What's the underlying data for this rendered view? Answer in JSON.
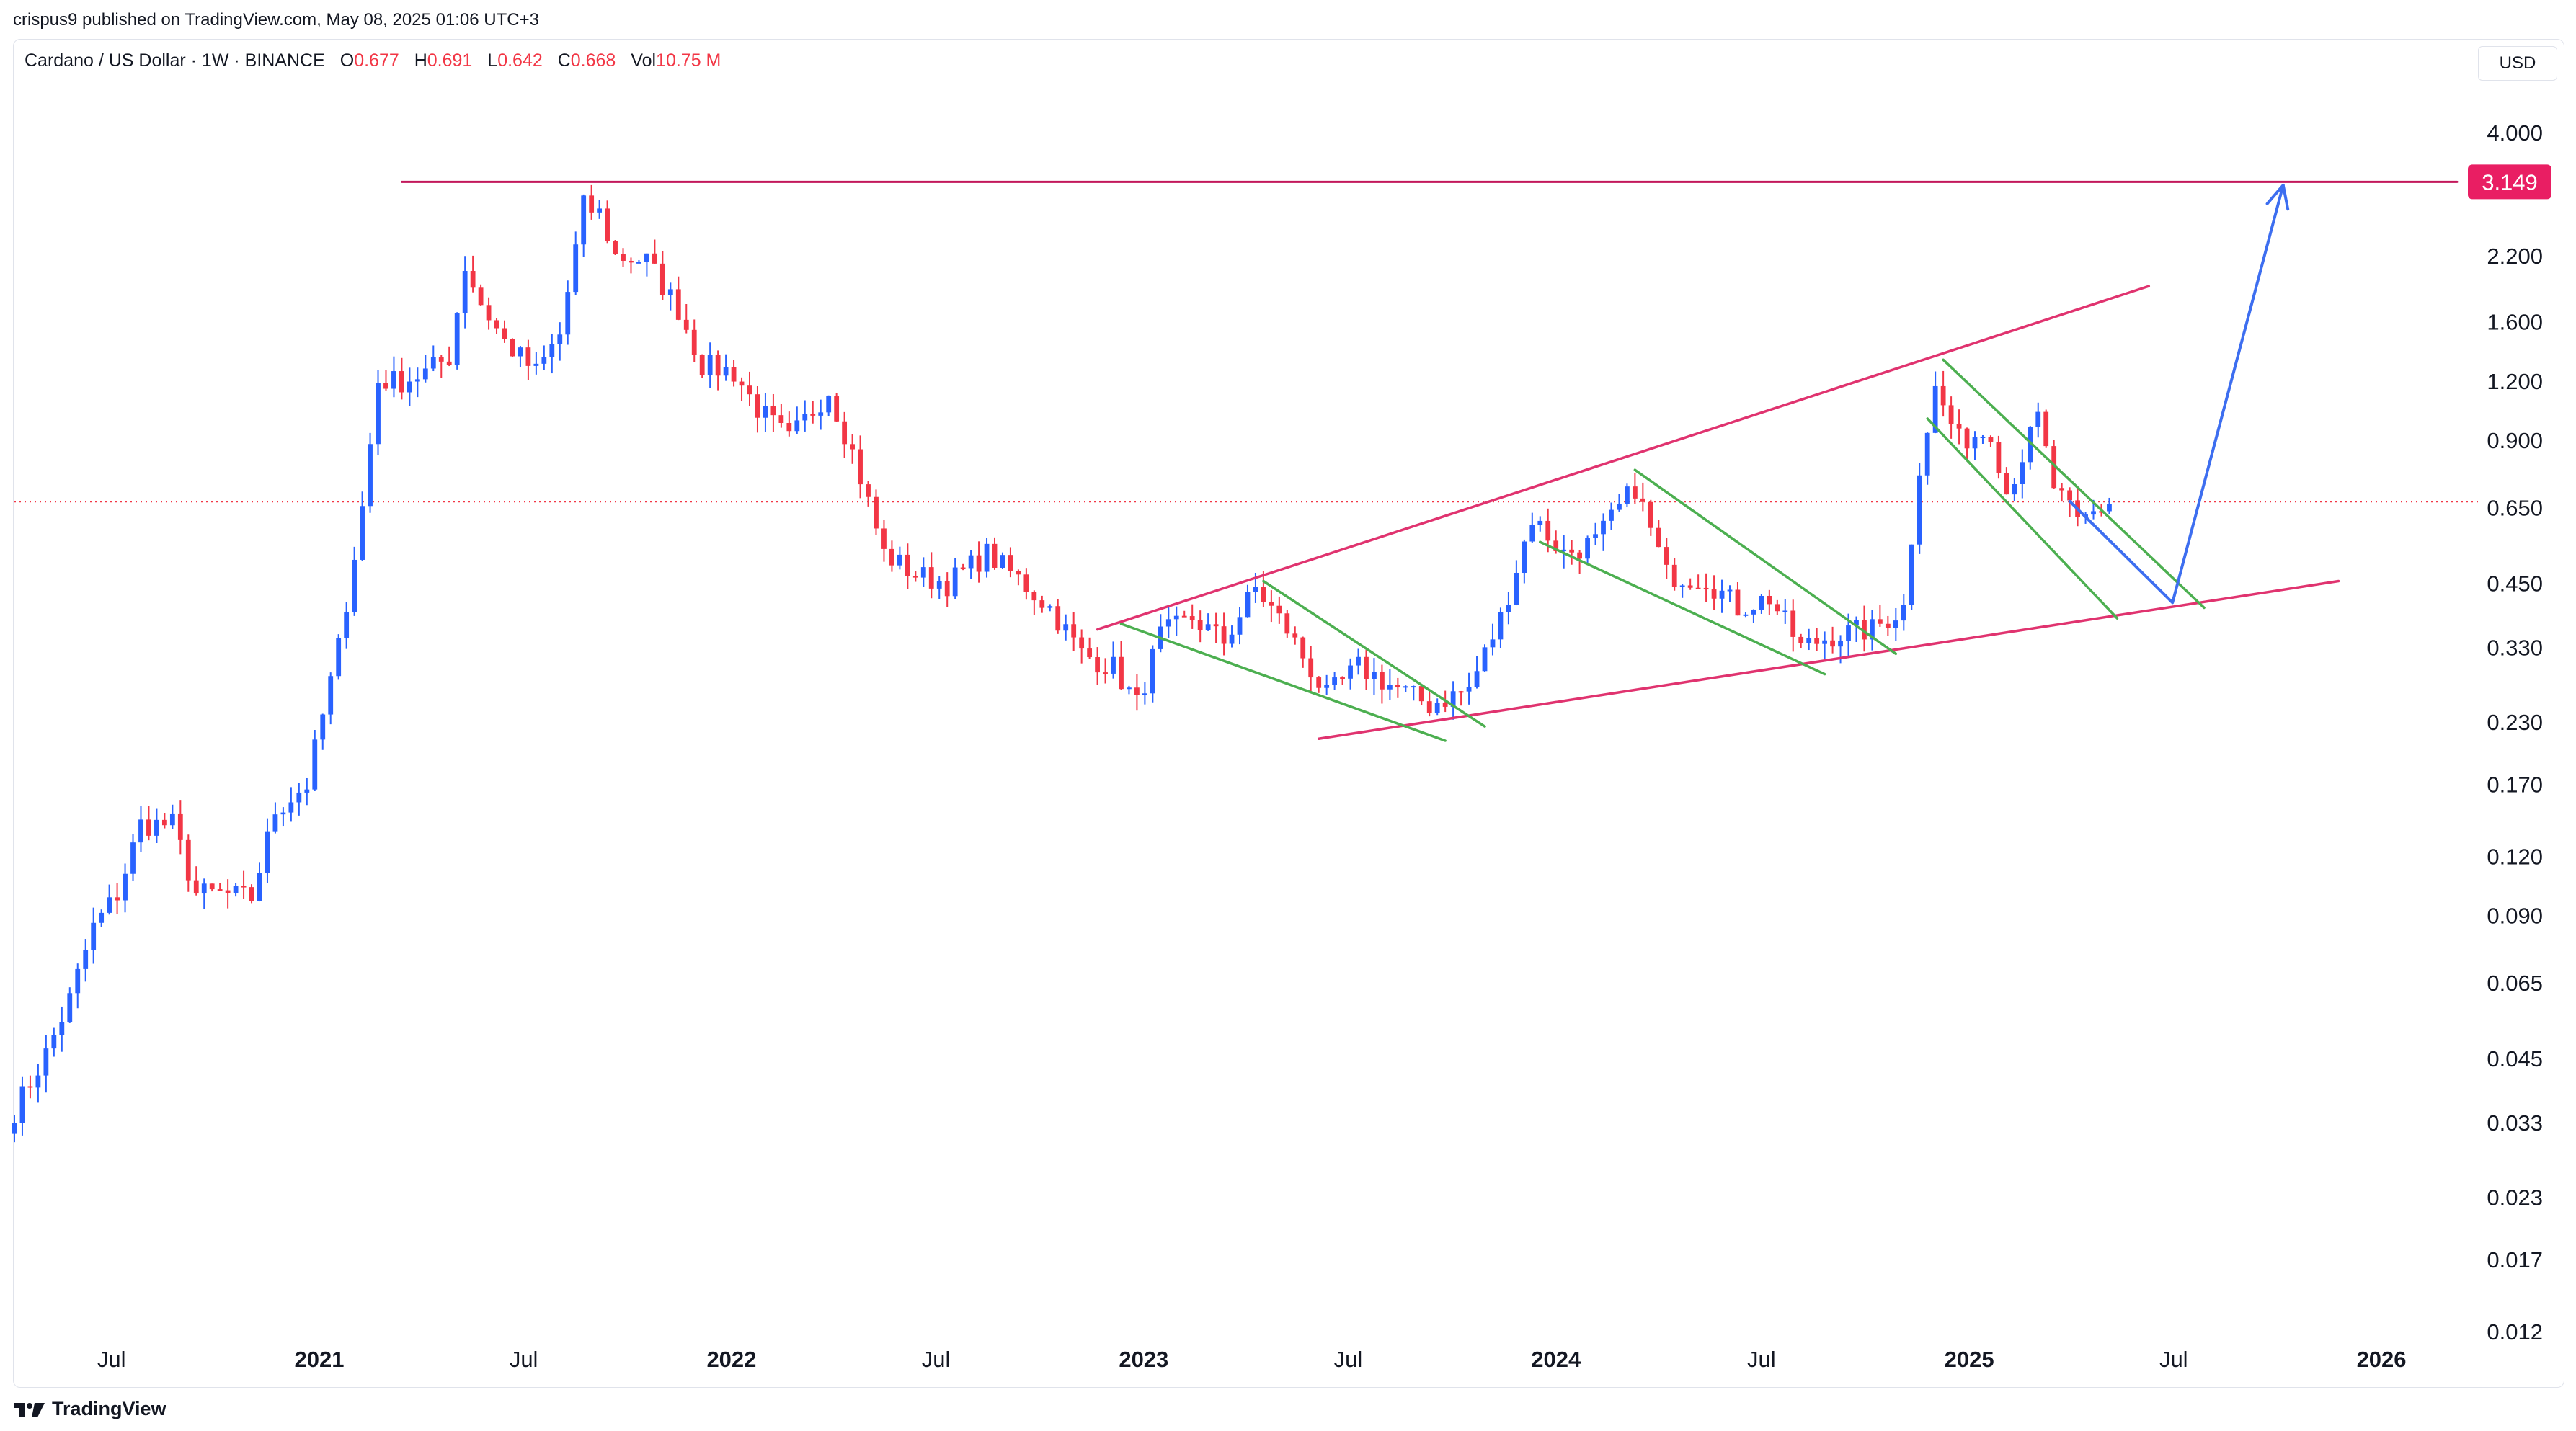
{
  "publisher_line": "crispus9 published on TradingView.com, May 08, 2025 01:06 UTC+3",
  "legend": {
    "symbol": "Cardano / US Dollar · 1W · BINANCE",
    "open_label": "O",
    "open": "0.677",
    "high_label": "H",
    "high": "0.691",
    "low_label": "L",
    "low": "0.642",
    "close_label": "C",
    "close": "0.668",
    "vol_label": "Vol",
    "vol": "10.75 M"
  },
  "currency_button": "USD",
  "brand_text": "TradingView",
  "colors": {
    "up": "#2962ff",
    "down": "#f23645",
    "wedge": "#e0336f",
    "flag": "#4caf50",
    "projection": "#3d6ef0",
    "price_label_bg": "#e91e63",
    "resistance": "#c2185b"
  },
  "chart_data": {
    "type": "candlestick",
    "scale": "log",
    "ylim": [
      0.01,
      5.0
    ],
    "xlim": [
      "2020-04-06",
      "2026-03-16"
    ],
    "y_ticks": [
      "4.000",
      "3.149",
      "2.200",
      "1.600",
      "1.200",
      "0.900",
      "0.650",
      "0.450",
      "0.330",
      "0.230",
      "0.170",
      "0.120",
      "0.090",
      "0.065",
      "0.045",
      "0.033",
      "0.023",
      "0.017",
      "0.012"
    ],
    "y_tick_values": [
      4.0,
      3.149,
      2.2,
      1.6,
      1.2,
      0.9,
      0.65,
      0.45,
      0.33,
      0.23,
      0.17,
      0.12,
      0.09,
      0.065,
      0.045,
      0.033,
      0.023,
      0.017,
      0.012
    ],
    "x_ticks": [
      {
        "label": "Jul",
        "date": "2020-07-01",
        "year": false
      },
      {
        "label": "2021",
        "date": "2021-01-01",
        "year": true
      },
      {
        "label": "Jul",
        "date": "2021-07-01",
        "year": false
      },
      {
        "label": "2022",
        "date": "2022-01-01",
        "year": true
      },
      {
        "label": "Jul",
        "date": "2022-07-01",
        "year": false
      },
      {
        "label": "2023",
        "date": "2023-01-01",
        "year": true
      },
      {
        "label": "Jul",
        "date": "2023-07-01",
        "year": false
      },
      {
        "label": "2024",
        "date": "2024-01-01",
        "year": true
      },
      {
        "label": "Jul",
        "date": "2024-07-01",
        "year": false
      },
      {
        "label": "2025",
        "date": "2025-01-01",
        "year": true
      },
      {
        "label": "Jul",
        "date": "2025-07-01",
        "year": false
      },
      {
        "label": "2026",
        "date": "2026-01-01",
        "year": true
      }
    ],
    "price_label": "3.149",
    "current_price": 0.668,
    "close_anchors": [
      [
        "2020-04-06",
        0.035
      ],
      [
        "2020-05-04",
        0.046
      ],
      [
        "2020-05-25",
        0.06
      ],
      [
        "2020-06-15",
        0.085
      ],
      [
        "2020-07-06",
        0.1
      ],
      [
        "2020-07-27",
        0.14
      ],
      [
        "2020-08-24",
        0.14
      ],
      [
        "2020-09-14",
        0.1
      ],
      [
        "2020-10-05",
        0.1
      ],
      [
        "2020-11-02",
        0.098
      ],
      [
        "2020-11-23",
        0.15
      ],
      [
        "2020-12-21",
        0.17
      ],
      [
        "2021-01-18",
        0.33
      ],
      [
        "2021-02-08",
        0.65
      ],
      [
        "2021-02-22",
        1.2
      ],
      [
        "2021-03-15",
        1.2
      ],
      [
        "2021-04-05",
        1.25
      ],
      [
        "2021-04-26",
        1.35
      ],
      [
        "2021-05-10",
        2.1
      ],
      [
        "2021-05-24",
        1.75
      ],
      [
        "2021-06-14",
        1.45
      ],
      [
        "2021-07-12",
        1.25
      ],
      [
        "2021-08-02",
        1.5
      ],
      [
        "2021-08-23",
        2.8
      ],
      [
        "2021-09-06",
        2.7
      ],
      [
        "2021-09-20",
        2.2
      ],
      [
        "2021-10-18",
        2.15
      ],
      [
        "2021-11-15",
        1.7
      ],
      [
        "2021-12-06",
        1.3
      ],
      [
        "2022-01-03",
        1.25
      ],
      [
        "2022-01-24",
        1.05
      ],
      [
        "2022-02-21",
        0.9
      ],
      [
        "2022-03-28",
        1.15
      ],
      [
        "2022-04-18",
        0.85
      ],
      [
        "2022-05-16",
        0.52
      ],
      [
        "2022-06-13",
        0.47
      ],
      [
        "2022-07-11",
        0.45
      ],
      [
        "2022-08-15",
        0.52
      ],
      [
        "2022-09-12",
        0.46
      ],
      [
        "2022-10-10",
        0.4
      ],
      [
        "2022-11-07",
        0.32
      ],
      [
        "2022-12-05",
        0.3
      ],
      [
        "2022-12-26",
        0.25
      ],
      [
        "2023-01-16",
        0.35
      ],
      [
        "2023-02-13",
        0.38
      ],
      [
        "2023-03-13",
        0.34
      ],
      [
        "2023-04-10",
        0.44
      ],
      [
        "2023-05-08",
        0.36
      ],
      [
        "2023-06-12",
        0.26
      ],
      [
        "2023-07-10",
        0.3
      ],
      [
        "2023-08-14",
        0.27
      ],
      [
        "2023-09-11",
        0.25
      ],
      [
        "2023-10-16",
        0.27
      ],
      [
        "2023-11-13",
        0.38
      ],
      [
        "2023-12-11",
        0.62
      ],
      [
        "2024-01-08",
        0.52
      ],
      [
        "2024-02-05",
        0.55
      ],
      [
        "2024-03-11",
        0.72
      ],
      [
        "2024-04-08",
        0.47
      ],
      [
        "2024-05-13",
        0.46
      ],
      [
        "2024-06-10",
        0.4
      ],
      [
        "2024-07-08",
        0.42
      ],
      [
        "2024-08-05",
        0.33
      ],
      [
        "2024-09-02",
        0.35
      ],
      [
        "2024-10-07",
        0.36
      ],
      [
        "2024-11-04",
        0.4
      ],
      [
        "2024-11-18",
        0.8
      ],
      [
        "2024-12-02",
        1.15
      ],
      [
        "2024-12-23",
        0.9
      ],
      [
        "2025-01-20",
        0.95
      ],
      [
        "2025-02-03",
        0.7
      ],
      [
        "2025-03-03",
        1.0
      ],
      [
        "2025-03-17",
        0.72
      ],
      [
        "2025-04-07",
        0.6
      ],
      [
        "2025-05-05",
        0.668
      ]
    ],
    "overlays": [
      {
        "name": "resistance",
        "points": [
          [
            "2021-03-15",
            3.149
          ],
          [
            "2026-03-09",
            3.149
          ]
        ]
      },
      {
        "name": "wedge-upper",
        "points": [
          [
            "2022-11-21",
            0.36
          ],
          [
            "2025-06-09",
            1.9
          ]
        ]
      },
      {
        "name": "wedge-lower",
        "points": [
          [
            "2023-06-05",
            0.212
          ],
          [
            "2025-11-24",
            0.455
          ]
        ]
      },
      {
        "name": "flag-a-upper",
        "points": [
          [
            "2023-04-17",
            0.455
          ],
          [
            "2023-10-30",
            0.225
          ]
        ]
      },
      {
        "name": "flag-a-lower",
        "points": [
          [
            "2022-12-12",
            0.37
          ],
          [
            "2023-09-25",
            0.21
          ]
        ]
      },
      {
        "name": "flag-b-upper",
        "points": [
          [
            "2024-03-11",
            0.78
          ],
          [
            "2024-10-28",
            0.32
          ]
        ]
      },
      {
        "name": "flag-b-lower",
        "points": [
          [
            "2023-12-18",
            0.55
          ],
          [
            "2024-08-26",
            0.29
          ]
        ]
      },
      {
        "name": "flag-c-upper",
        "points": [
          [
            "2024-12-09",
            1.33
          ],
          [
            "2025-07-28",
            0.4
          ]
        ]
      },
      {
        "name": "flag-c-lower",
        "points": [
          [
            "2024-11-25",
            1.0
          ],
          [
            "2025-05-12",
            0.38
          ]
        ]
      },
      {
        "name": "projection",
        "points": [
          [
            "2025-03-31",
            0.67
          ],
          [
            "2025-06-30",
            0.41
          ],
          [
            "2025-10-06",
            3.1
          ]
        ]
      }
    ]
  }
}
